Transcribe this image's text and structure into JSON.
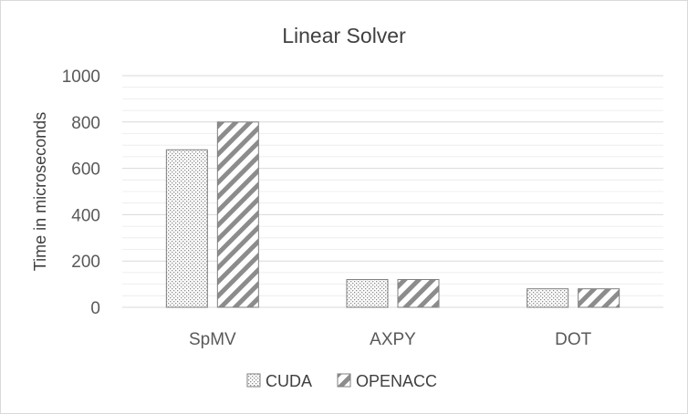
{
  "chart_data": {
    "type": "bar",
    "title": "Linear Solver",
    "xlabel": "",
    "ylabel": "Time in microseconds",
    "categories": [
      "SpMV",
      "AXPY",
      "DOT"
    ],
    "series": [
      {
        "name": "CUDA",
        "values": [
          680,
          120,
          80
        ],
        "pattern": "dots"
      },
      {
        "name": "OPENACC",
        "values": [
          800,
          120,
          80
        ],
        "pattern": "diagonal"
      }
    ],
    "ylim": [
      0,
      1000
    ],
    "yticks": [
      0,
      200,
      400,
      600,
      800,
      1000
    ],
    "grid": true,
    "legend_position": "bottom"
  },
  "colors": {
    "gridline": "#d9d9d9",
    "bar_stroke": "#7f7f7f",
    "pattern": "#7f7f7f",
    "border": "#d9d9d9"
  }
}
